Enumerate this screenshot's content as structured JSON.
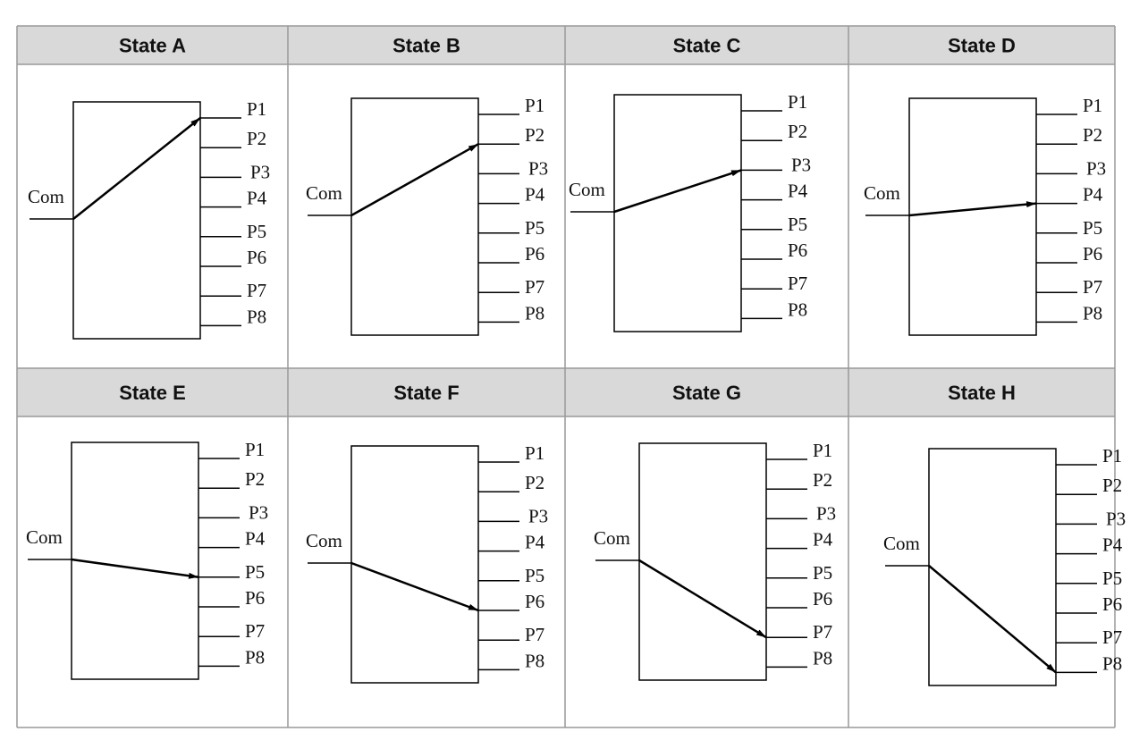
{
  "states": [
    {
      "title": "State A"
    },
    {
      "title": "State B"
    },
    {
      "title": "State C"
    },
    {
      "title": "State D"
    },
    {
      "title": "State E"
    },
    {
      "title": "State F"
    },
    {
      "title": "State G"
    },
    {
      "title": "State H"
    }
  ],
  "com": "Com",
  "ports": [
    "P1",
    "P2",
    "P3",
    "P4",
    "P5",
    "P6",
    "P7",
    "P8"
  ]
}
